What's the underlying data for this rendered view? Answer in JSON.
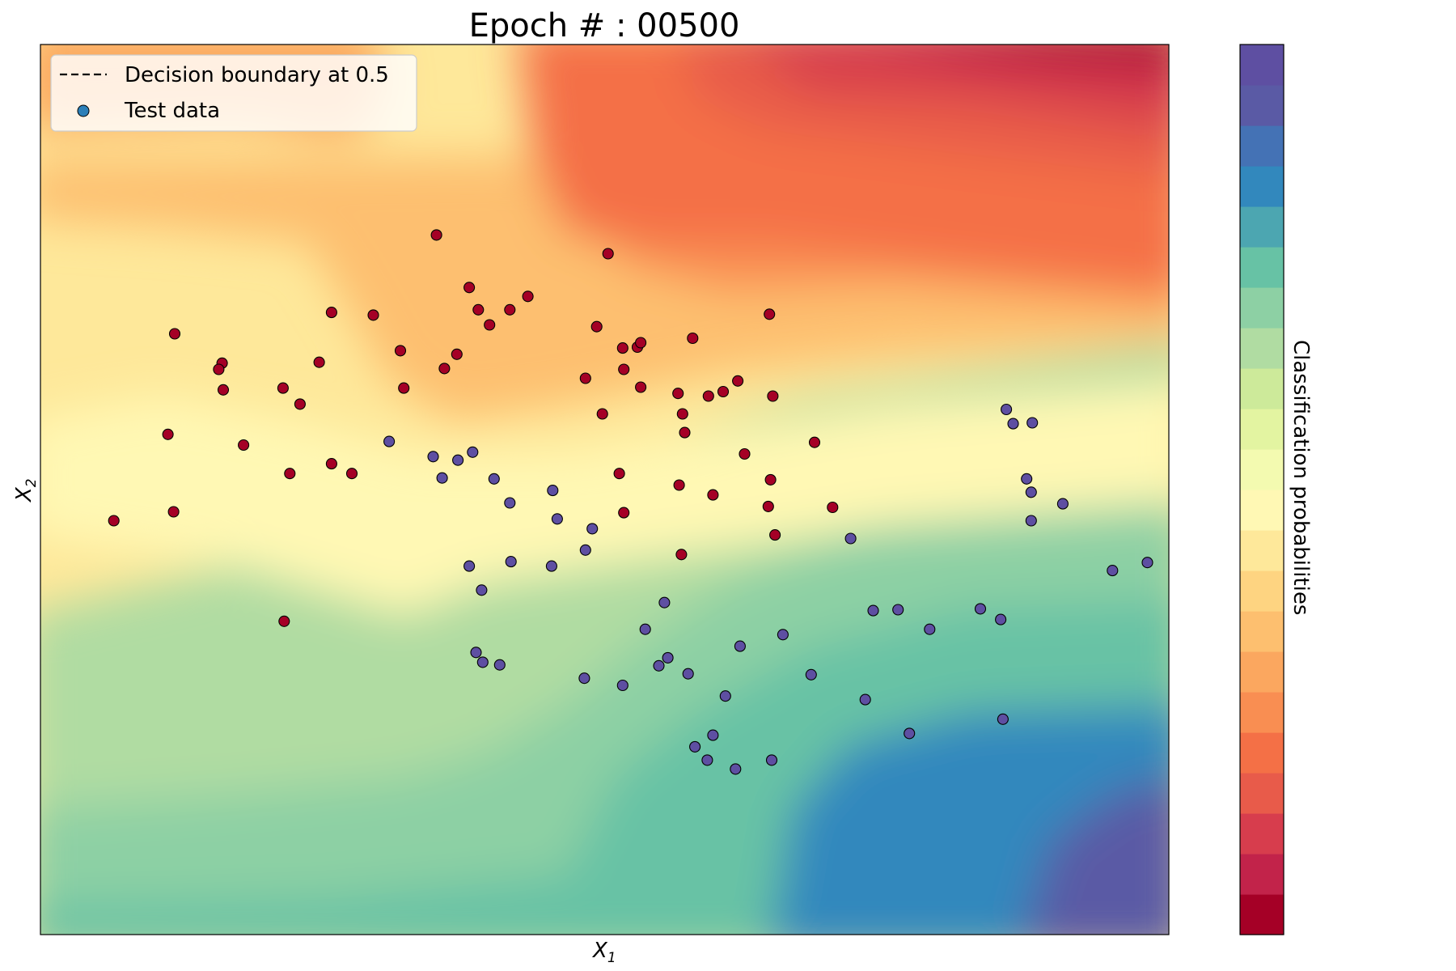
{
  "chart_data": {
    "type": "contour+scatter",
    "title": "Epoch # : 00500",
    "xlabel": "X",
    "xlabel_sub": "1",
    "ylabel": "X",
    "ylabel_sub": "2",
    "colorbar_label": "Classification probabilities",
    "colormap": "Spectral",
    "colormap_levels": 22,
    "colormap_colors": [
      "#a50026",
      "#c2234a",
      "#d73d4d",
      "#e85b4a",
      "#f47046",
      "#f98e52",
      "#fba75f",
      "#fdbf6f",
      "#fed481",
      "#fee89a",
      "#fff8b4",
      "#f3fab0",
      "#e3f4a1",
      "#cdea9a",
      "#b0dca2",
      "#8dd0a4",
      "#67c2a5",
      "#4ca6b1",
      "#3288bd",
      "#4472b5",
      "#5a5aa5",
      "#5e4fa2"
    ],
    "grid": false,
    "axis_ticks": false,
    "legend": {
      "placement": "top-left",
      "entries": [
        {
          "label": "Decision boundary at 0.5",
          "kind": "dashed-line",
          "color": "#000000"
        },
        {
          "label": "Test data",
          "kind": "marker",
          "color": "#2c7fb8"
        }
      ]
    },
    "xlim": [
      0,
      1
    ],
    "ylim": [
      0,
      1
    ],
    "class_colors": {
      "class_0": "#a50026",
      "class_1": "#5e4fa2"
    },
    "series": [
      {
        "class": 0,
        "points": [
          [
            0.351,
            0.786
          ],
          [
            0.503,
            0.765
          ],
          [
            0.38,
            0.727
          ],
          [
            0.432,
            0.717
          ],
          [
            0.416,
            0.702
          ],
          [
            0.398,
            0.685
          ],
          [
            0.388,
            0.702
          ],
          [
            0.258,
            0.699
          ],
          [
            0.295,
            0.696
          ],
          [
            0.119,
            0.675
          ],
          [
            0.319,
            0.656
          ],
          [
            0.369,
            0.652
          ],
          [
            0.247,
            0.643
          ],
          [
            0.358,
            0.636
          ],
          [
            0.322,
            0.614
          ],
          [
            0.162,
            0.612
          ],
          [
            0.646,
            0.697
          ],
          [
            0.493,
            0.683
          ],
          [
            0.516,
            0.659
          ],
          [
            0.529,
            0.66
          ],
          [
            0.532,
            0.665
          ],
          [
            0.578,
            0.67
          ],
          [
            0.517,
            0.635
          ],
          [
            0.483,
            0.625
          ],
          [
            0.532,
            0.615
          ],
          [
            0.565,
            0.608
          ],
          [
            0.605,
            0.61
          ],
          [
            0.618,
            0.622
          ],
          [
            0.592,
            0.605
          ],
          [
            0.649,
            0.605
          ],
          [
            0.498,
            0.585
          ],
          [
            0.569,
            0.585
          ],
          [
            0.161,
            0.642
          ],
          [
            0.158,
            0.635
          ],
          [
            0.215,
            0.614
          ],
          [
            0.23,
            0.596
          ],
          [
            0.113,
            0.562
          ],
          [
            0.18,
            0.55
          ],
          [
            0.221,
            0.518
          ],
          [
            0.258,
            0.529
          ],
          [
            0.276,
            0.518
          ],
          [
            0.571,
            0.564
          ],
          [
            0.624,
            0.54
          ],
          [
            0.686,
            0.553
          ],
          [
            0.513,
            0.518
          ],
          [
            0.566,
            0.505
          ],
          [
            0.647,
            0.511
          ],
          [
            0.596,
            0.494
          ],
          [
            0.645,
            0.481
          ],
          [
            0.702,
            0.48
          ],
          [
            0.065,
            0.465
          ],
          [
            0.118,
            0.475
          ],
          [
            0.517,
            0.474
          ],
          [
            0.651,
            0.449
          ],
          [
            0.568,
            0.427
          ],
          [
            0.216,
            0.352
          ]
        ]
      },
      {
        "class": 1,
        "points": [
          [
            0.309,
            0.554
          ],
          [
            0.348,
            0.537
          ],
          [
            0.37,
            0.533
          ],
          [
            0.383,
            0.542
          ],
          [
            0.356,
            0.513
          ],
          [
            0.402,
            0.512
          ],
          [
            0.416,
            0.485
          ],
          [
            0.454,
            0.499
          ],
          [
            0.489,
            0.456
          ],
          [
            0.458,
            0.467
          ],
          [
            0.483,
            0.432
          ],
          [
            0.417,
            0.419
          ],
          [
            0.38,
            0.414
          ],
          [
            0.453,
            0.414
          ],
          [
            0.391,
            0.387
          ],
          [
            0.553,
            0.373
          ],
          [
            0.718,
            0.445
          ],
          [
            0.856,
            0.59
          ],
          [
            0.862,
            0.574
          ],
          [
            0.879,
            0.575
          ],
          [
            0.874,
            0.512
          ],
          [
            0.878,
            0.497
          ],
          [
            0.906,
            0.484
          ],
          [
            0.878,
            0.465
          ],
          [
            0.981,
            0.418
          ],
          [
            0.95,
            0.409
          ],
          [
            0.833,
            0.366
          ],
          [
            0.738,
            0.364
          ],
          [
            0.76,
            0.365
          ],
          [
            0.788,
            0.343
          ],
          [
            0.851,
            0.354
          ],
          [
            0.658,
            0.337
          ],
          [
            0.62,
            0.324
          ],
          [
            0.536,
            0.343
          ],
          [
            0.548,
            0.302
          ],
          [
            0.556,
            0.311
          ],
          [
            0.574,
            0.293
          ],
          [
            0.683,
            0.292
          ],
          [
            0.516,
            0.28
          ],
          [
            0.482,
            0.288
          ],
          [
            0.392,
            0.306
          ],
          [
            0.386,
            0.317
          ],
          [
            0.407,
            0.303
          ],
          [
            0.607,
            0.268
          ],
          [
            0.731,
            0.264
          ],
          [
            0.77,
            0.226
          ],
          [
            0.853,
            0.242
          ],
          [
            0.596,
            0.224
          ],
          [
            0.58,
            0.211
          ],
          [
            0.648,
            0.196
          ],
          [
            0.591,
            0.196
          ],
          [
            0.616,
            0.186
          ]
        ]
      }
    ]
  }
}
